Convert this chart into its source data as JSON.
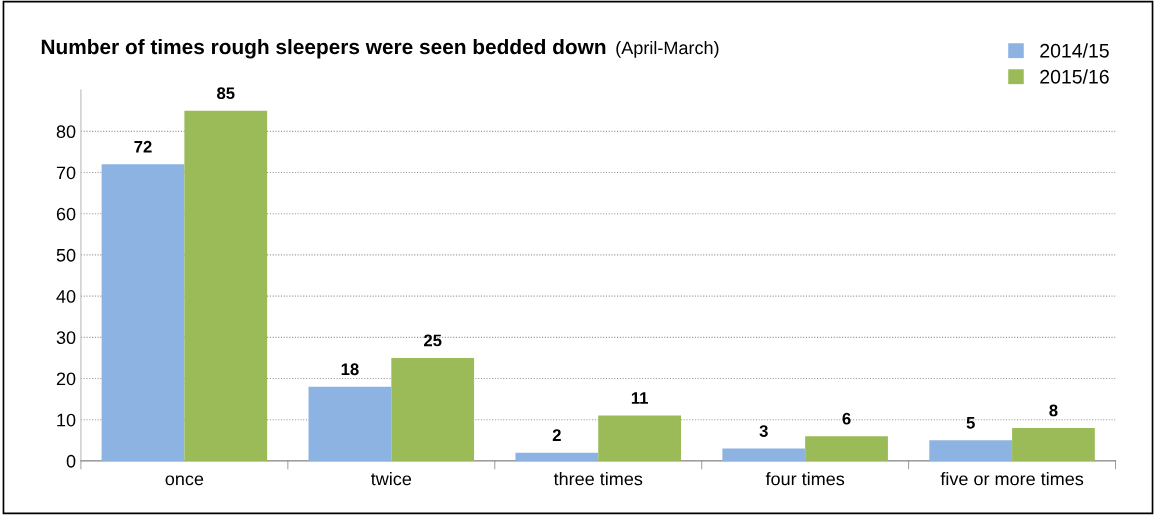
{
  "chart_data": {
    "type": "bar",
    "title": "Number of times rough sleepers were seen bedded down",
    "subtitle": "(April-March)",
    "categories": [
      "once",
      "twice",
      "three times",
      "four times",
      "five or more times"
    ],
    "series": [
      {
        "name": "2014/15",
        "color": "#8db3e2",
        "values": [
          72,
          18,
          2,
          3,
          5
        ]
      },
      {
        "name": "2015/16",
        "color": "#9bbb59",
        "values": [
          85,
          25,
          11,
          6,
          8
        ]
      }
    ],
    "ylim": [
      0,
      90
    ],
    "yticks": [
      0,
      10,
      20,
      30,
      40,
      50,
      60,
      70,
      80
    ],
    "grid": "y",
    "legend": "top right",
    "data_labels": true
  }
}
